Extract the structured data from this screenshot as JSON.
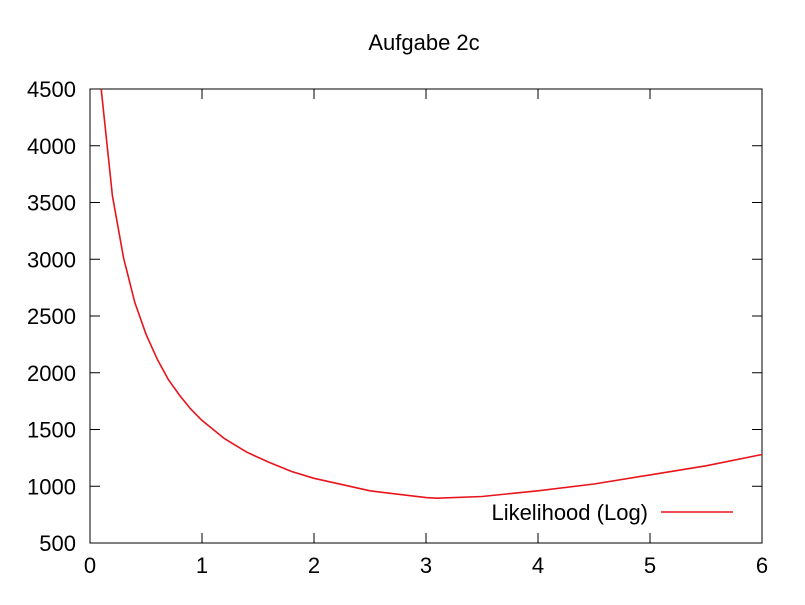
{
  "chart_data": {
    "type": "line",
    "title": "Aufgabe 2c",
    "xlabel": "",
    "ylabel": "",
    "xlim": [
      0,
      6
    ],
    "ylim": [
      500,
      4500
    ],
    "xticks": [
      "0",
      "1",
      "2",
      "3",
      "4",
      "5",
      "6"
    ],
    "yticks": [
      "500",
      "1000",
      "1500",
      "2000",
      "2500",
      "3000",
      "3500",
      "4000",
      "4500"
    ],
    "grid": false,
    "legend_position": "bottom-right",
    "series": [
      {
        "name": "Likelihood (Log)",
        "color": "#e8141b",
        "x": [
          0.1,
          0.2,
          0.3,
          0.4,
          0.5,
          0.6,
          0.7,
          0.8,
          0.9,
          1.0,
          1.2,
          1.4,
          1.6,
          1.8,
          2.0,
          2.5,
          3.0,
          3.1,
          3.5,
          4.0,
          4.5,
          5.0,
          5.5,
          6.0
        ],
        "y": [
          4500,
          3560,
          3010,
          2620,
          2340,
          2120,
          1940,
          1800,
          1680,
          1580,
          1420,
          1300,
          1210,
          1130,
          1070,
          960,
          900,
          895,
          910,
          960,
          1020,
          1100,
          1180,
          1280
        ]
      }
    ]
  }
}
